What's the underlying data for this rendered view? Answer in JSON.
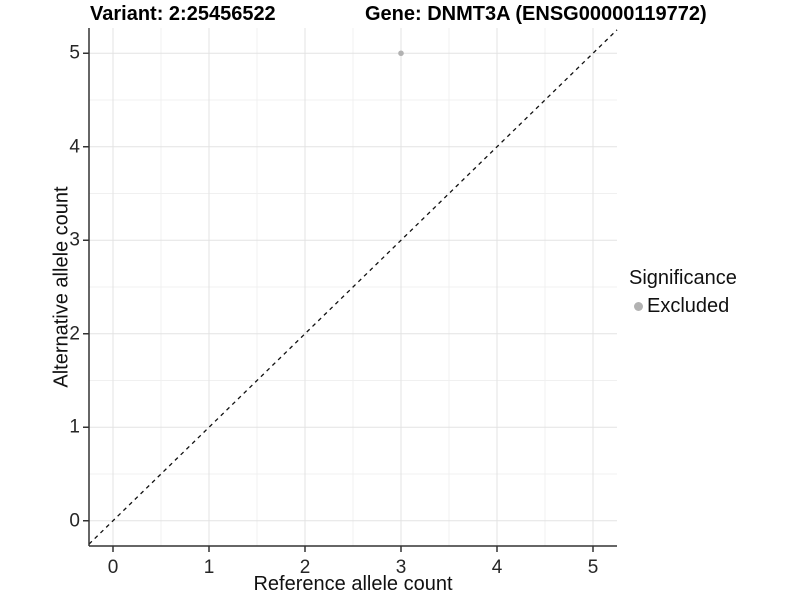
{
  "chart_data": {
    "type": "scatter",
    "title_left": "Variant: 2:25456522",
    "title_right": "Gene: DNMT3A (ENSG00000119772)",
    "xlabel": "Reference allele count",
    "ylabel": "Alternative allele count",
    "xticks": [
      0,
      1,
      2,
      3,
      4,
      5
    ],
    "yticks": [
      0,
      1,
      2,
      3,
      4,
      5
    ],
    "minor_ticks_x": [
      0.5,
      1.5,
      2.5,
      3.5,
      4.5
    ],
    "minor_ticks_y": [
      0.5,
      1.5,
      2.5,
      3.5,
      4.5
    ],
    "xlim": [
      -0.25,
      5.25
    ],
    "ylim": [
      -0.27,
      5.27
    ],
    "grid": "major+minor",
    "reference_line": {
      "type": "identity",
      "slope": 1,
      "intercept": 0,
      "style": "dashed"
    },
    "points": [
      {
        "x": 3,
        "y": 5,
        "significance": "Excluded"
      }
    ],
    "legend": {
      "title": "Significance",
      "position": "right",
      "entries": [
        {
          "label": "Excluded",
          "color": "#b2b2b2"
        }
      ]
    }
  },
  "colors": {
    "background": "#ffffff",
    "grid_major": "#e3e3e3",
    "grid_minor": "#f0f0f0",
    "axis_line": "#333333",
    "ref_line": "#111111",
    "point": "#b2b2b2",
    "text": "#111111"
  }
}
